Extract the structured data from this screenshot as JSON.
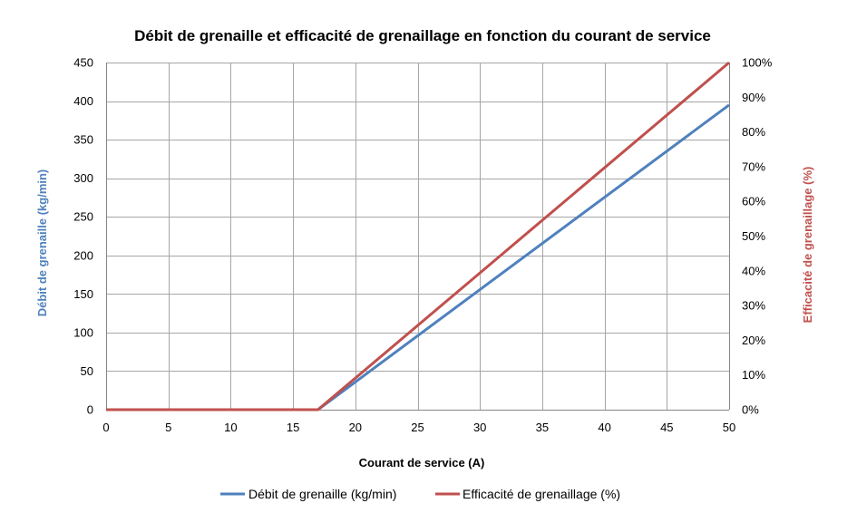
{
  "chart_data": {
    "type": "line",
    "title": "Débit de grenaille et efficacité de grenaillage en fonction du courant de service",
    "xlabel": "Courant de service (A)",
    "ylabel": "Débit de grenaille (kg/min)",
    "y2label": "Efficacité de grenaillage (%)",
    "xlim": [
      0,
      50
    ],
    "ylim": [
      0,
      450
    ],
    "y2lim": [
      0,
      100
    ],
    "x_ticks": [
      0,
      5,
      10,
      15,
      20,
      25,
      30,
      35,
      40,
      45,
      50
    ],
    "y_ticks": [
      0,
      50,
      100,
      150,
      200,
      250,
      300,
      350,
      400,
      450
    ],
    "y2_ticks": [
      "0%",
      "10%",
      "20%",
      "30%",
      "40%",
      "50%",
      "60%",
      "70%",
      "80%",
      "90%",
      "100%"
    ],
    "y2_tick_values": [
      0,
      10,
      20,
      30,
      40,
      50,
      60,
      70,
      80,
      90,
      100
    ],
    "grid": true,
    "legend_position": "bottom",
    "series": [
      {
        "name": "Débit de grenaille (kg/min)",
        "axis": "left",
        "color": "#4f81bd",
        "x": [
          0,
          17,
          50
        ],
        "values": [
          0,
          0,
          395
        ]
      },
      {
        "name": "Efficacité de grenaillage (%)",
        "axis": "right",
        "color": "#c0504d",
        "x": [
          0,
          17,
          50
        ],
        "values": [
          0,
          0,
          100
        ]
      }
    ]
  }
}
